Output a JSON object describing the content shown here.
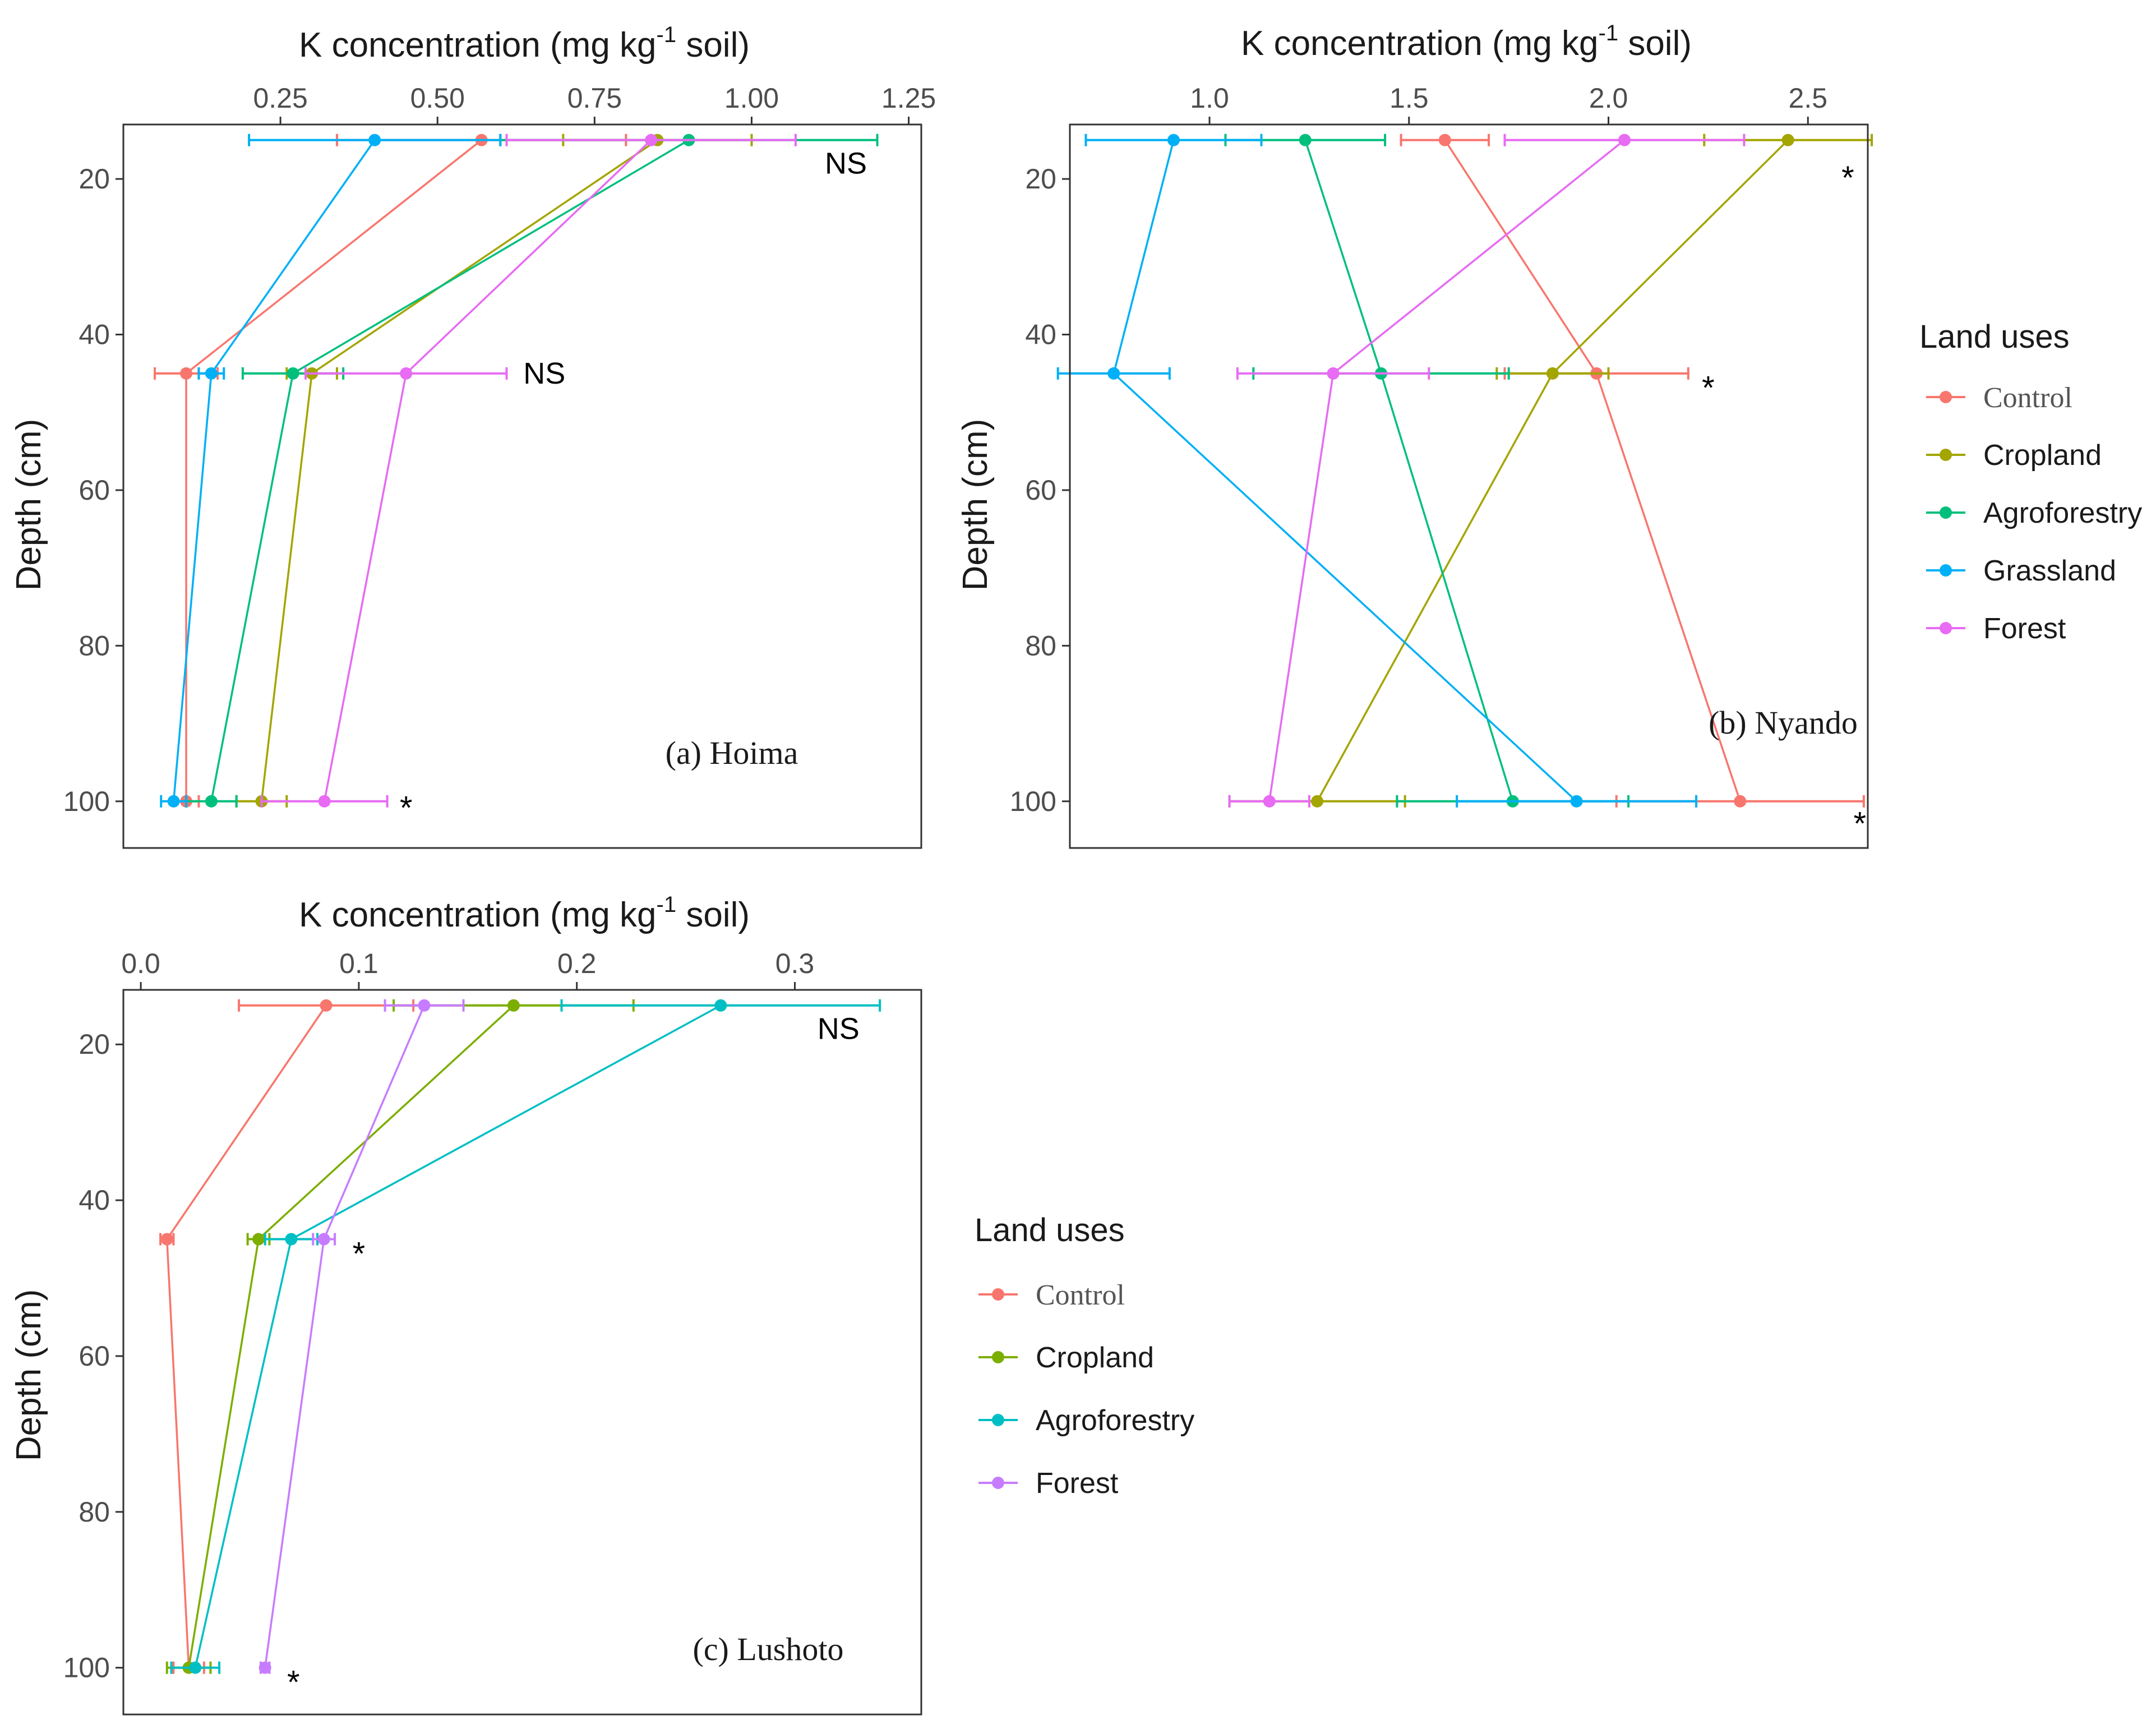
{
  "chart_data": [
    {
      "type": "line",
      "panel": "a",
      "title": "(a) Hoima",
      "xlabel_main": "K concentration (mg kg",
      "xlabel_sup": "-1",
      "xlabel_tail": " soil)",
      "ylabel": "Depth (cm)",
      "xlim": [
        0.0,
        1.27
      ],
      "ylim": [
        13,
        106
      ],
      "xticks": [
        0.25,
        0.5,
        0.75,
        1.0,
        1.25
      ],
      "xtick_labels": [
        "0.25",
        "0.50",
        "0.75",
        "1.00",
        "1.25"
      ],
      "yticks": [
        20,
        40,
        60,
        80,
        100
      ],
      "ytick_labels": [
        "20",
        "40",
        "60",
        "80",
        "100"
      ],
      "depths": [
        15,
        45,
        100
      ],
      "series": [
        {
          "name": "Control",
          "color": "#F8766D",
          "values": [
            0.57,
            0.1,
            0.1
          ],
          "err": [
            0.23,
            0.05,
            0.02
          ]
        },
        {
          "name": "Cropland",
          "color": "#A3A500",
          "values": [
            0.85,
            0.3,
            0.22
          ],
          "err": [
            0.15,
            0.04,
            0.04
          ]
        },
        {
          "name": "Agroforestry",
          "color": "#00BF7D",
          "values": [
            0.9,
            0.27,
            0.14
          ],
          "err": [
            0.3,
            0.08,
            0.04
          ]
        },
        {
          "name": "Grassland",
          "color": "#00B0F6",
          "values": [
            0.4,
            0.14,
            0.08
          ],
          "err": [
            0.2,
            0.02,
            0.02
          ]
        },
        {
          "name": "Forest",
          "color": "#E76BF3",
          "values": [
            0.84,
            0.45,
            0.32
          ],
          "err": [
            0.23,
            0.16,
            0.1
          ]
        }
      ],
      "annotations": [
        {
          "text": "NS",
          "x": 1.15,
          "y": 18
        },
        {
          "text": "NS",
          "x": 0.67,
          "y": 45
        },
        {
          "text": "*",
          "x": 0.45,
          "y": 101
        }
      ]
    },
    {
      "type": "line",
      "panel": "b",
      "title": "(b) Nyando",
      "xlabel_main": "K concentration (mg kg",
      "xlabel_sup": "-1",
      "xlabel_tail": " soil)",
      "ylabel": "Depth (cm)",
      "xlim": [
        0.65,
        2.65
      ],
      "ylim": [
        13,
        106
      ],
      "xticks": [
        1.0,
        1.5,
        2.0,
        2.5
      ],
      "xtick_labels": [
        "1.0",
        "1.5",
        "2.0",
        "2.5"
      ],
      "yticks": [
        20,
        40,
        60,
        80,
        100
      ],
      "ytick_labels": [
        "20",
        "40",
        "60",
        "80",
        "100"
      ],
      "depths": [
        15,
        45,
        100
      ],
      "series": [
        {
          "name": "Control",
          "color": "#F8766D",
          "values": [
            1.59,
            1.97,
            2.33
          ],
          "err": [
            0.11,
            0.23,
            0.31
          ]
        },
        {
          "name": "Cropland",
          "color": "#A3A500",
          "values": [
            2.45,
            1.86,
            1.27
          ],
          "err": [
            0.21,
            0.14,
            0.22
          ]
        },
        {
          "name": "Agroforestry",
          "color": "#00BF7D",
          "values": [
            1.24,
            1.43,
            1.76
          ],
          "err": [
            0.2,
            0.32,
            0.29
          ]
        },
        {
          "name": "Grassland",
          "color": "#00B0F6",
          "values": [
            0.91,
            0.76,
            1.92
          ],
          "err": [
            0.22,
            0.14,
            0.3
          ]
        },
        {
          "name": "Forest",
          "color": "#E76BF3",
          "values": [
            2.04,
            1.31,
            1.15
          ],
          "err": [
            0.3,
            0.24,
            0.1
          ]
        }
      ],
      "annotations": [
        {
          "text": "*",
          "x": 2.6,
          "y": 20
        },
        {
          "text": "*",
          "x": 2.25,
          "y": 47
        },
        {
          "text": "*",
          "x": 2.63,
          "y": 103
        }
      ]
    },
    {
      "type": "line",
      "panel": "c",
      "title": "(c) Lushoto",
      "xlabel_main": "K concentration (mg kg",
      "xlabel_sup": "-1",
      "xlabel_tail": " soil)",
      "ylabel": "Depth (cm)",
      "xlim": [
        -0.008,
        0.358
      ],
      "ylim": [
        13,
        106
      ],
      "xticks": [
        0.0,
        0.1,
        0.2,
        0.3
      ],
      "xtick_labels": [
        "0.0",
        "0.1",
        "0.2",
        "0.3"
      ],
      "yticks": [
        20,
        40,
        60,
        80,
        100
      ],
      "ytick_labels": [
        "20",
        "40",
        "60",
        "80",
        "100"
      ],
      "depths": [
        15,
        45,
        100
      ],
      "series": [
        {
          "name": "Control",
          "color": "#F8766D",
          "values": [
            0.085,
            0.012,
            0.022
          ],
          "err": [
            0.04,
            0.003,
            0.007
          ]
        },
        {
          "name": "Cropland",
          "color": "#7CAE00",
          "values": [
            0.171,
            0.054,
            0.022
          ],
          "err": [
            0.055,
            0.005,
            0.01
          ]
        },
        {
          "name": "Agroforestry",
          "color": "#00BFC4",
          "values": [
            0.266,
            0.069,
            0.025
          ],
          "err": [
            0.073,
            0.012,
            0.011
          ]
        },
        {
          "name": "Forest",
          "color": "#C77CFF",
          "values": [
            0.13,
            0.084,
            0.057
          ],
          "err": [
            0.018,
            0.005,
            0.002
          ]
        }
      ],
      "annotations": [
        {
          "text": "NS",
          "x": 0.32,
          "y": 18
        },
        {
          "text": "*",
          "x": 0.1,
          "y": 47
        },
        {
          "text": "*",
          "x": 0.07,
          "y": 102
        }
      ]
    }
  ],
  "legends": [
    {
      "title": "Land uses",
      "items": [
        "Control",
        "Cropland",
        "Agroforestry",
        "Grassland",
        "Forest"
      ]
    },
    {
      "title": "Land uses",
      "items": [
        "Control",
        "Cropland",
        "Agroforestry",
        "Forest"
      ]
    }
  ]
}
